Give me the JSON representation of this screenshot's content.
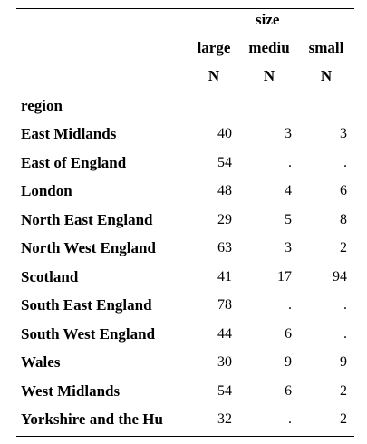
{
  "table": {
    "group_header": "size",
    "columns": [
      "large",
      "mediu",
      "small"
    ],
    "stat_labels": [
      "N",
      "N",
      "N"
    ],
    "row_header": "region",
    "rows": [
      {
        "label": "East Midlands",
        "values": [
          "40",
          "3",
          "3"
        ]
      },
      {
        "label": "East of England",
        "values": [
          "54",
          ".",
          "."
        ]
      },
      {
        "label": "London",
        "values": [
          "48",
          "4",
          "6"
        ]
      },
      {
        "label": "North East England",
        "values": [
          "29",
          "5",
          "8"
        ]
      },
      {
        "label": "North West England",
        "values": [
          "63",
          "3",
          "2"
        ]
      },
      {
        "label": "Scotland",
        "values": [
          "41",
          "17",
          "94"
        ]
      },
      {
        "label": "South East England",
        "values": [
          "78",
          ".",
          "."
        ]
      },
      {
        "label": "South West England",
        "values": [
          "44",
          "6",
          "."
        ]
      },
      {
        "label": "Wales",
        "values": [
          "30",
          "9",
          "9"
        ]
      },
      {
        "label": "West Midlands",
        "values": [
          "54",
          "6",
          "2"
        ]
      },
      {
        "label": "Yorkshire and the Hu",
        "values": [
          "32",
          ".",
          "2"
        ]
      }
    ]
  }
}
